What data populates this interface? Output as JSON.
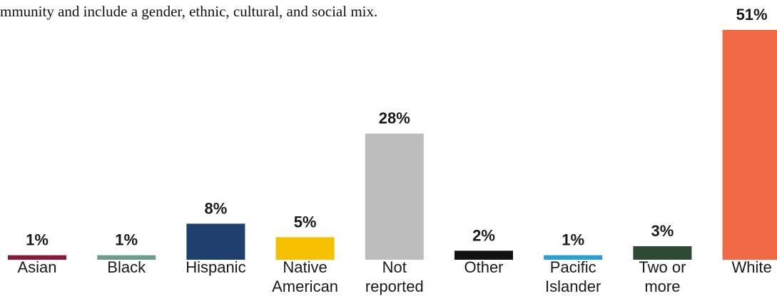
{
  "document": {
    "text_line": "mmunity and include a gender, ethnic, cultural, and social mix."
  },
  "chart_data": {
    "type": "bar",
    "title": "",
    "xlabel": "",
    "ylabel": "",
    "ylim": [
      0,
      51
    ],
    "grid": false,
    "legend": "none",
    "categories": [
      [
        "Asian"
      ],
      [
        "Black"
      ],
      [
        "Hispanic"
      ],
      [
        "Native",
        "American"
      ],
      [
        "Not",
        "reported"
      ],
      [
        "Other"
      ],
      [
        "Pacific",
        "Islander"
      ],
      [
        "Two or",
        "more"
      ],
      [
        "White"
      ]
    ],
    "values": [
      1,
      1,
      8,
      5,
      28,
      2,
      1,
      3,
      51
    ],
    "data_labels": [
      "1%",
      "1%",
      "8%",
      "5%",
      "28%",
      "2%",
      "1%",
      "3%",
      "51%"
    ],
    "colors": [
      "#8b1a3a",
      "#6f9b8e",
      "#1f3f6e",
      "#f5c000",
      "#bdbdbd",
      "#111111",
      "#2a9fd0",
      "#2f4a34",
      "#ef6a45"
    ]
  }
}
